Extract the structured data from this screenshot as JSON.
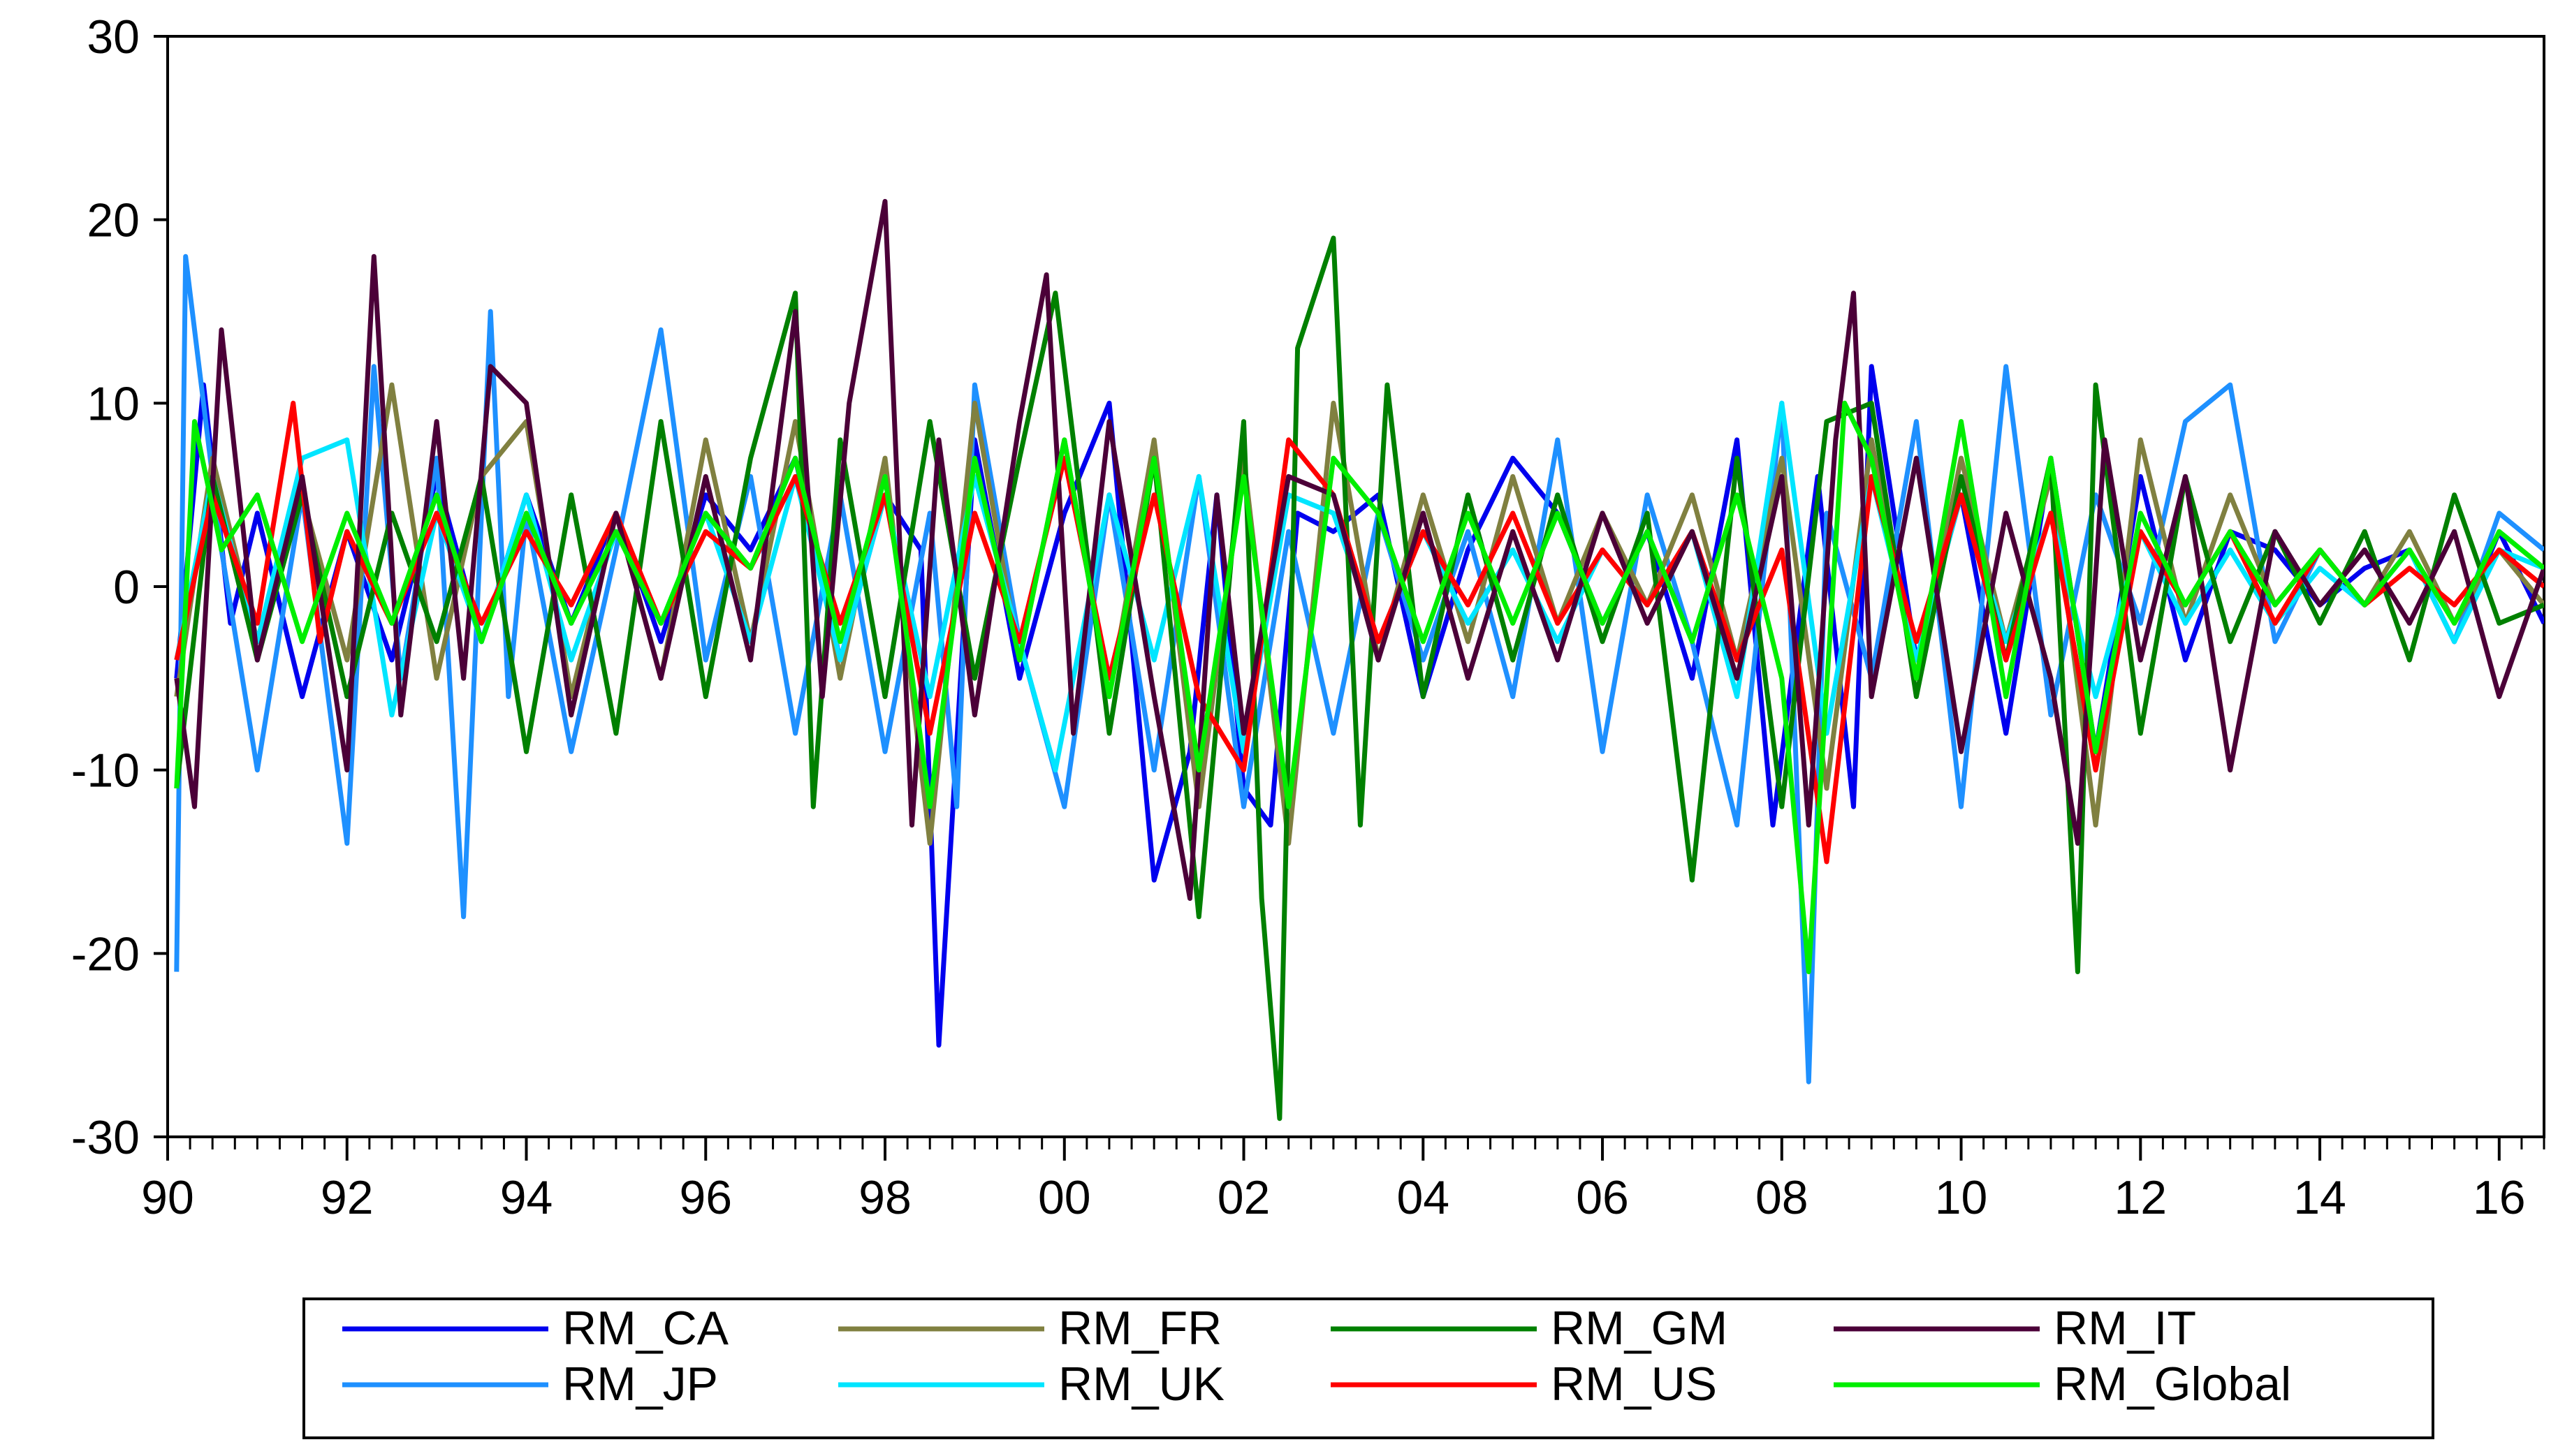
{
  "chart_data": {
    "type": "line",
    "title": "",
    "xlabel": "",
    "ylabel": "",
    "x_range": [
      1990.0,
      2016.5
    ],
    "ylim": [
      -30,
      30
    ],
    "y_ticks": [
      30,
      20,
      10,
      0,
      -10,
      -20,
      -30
    ],
    "x_ticks": [
      {
        "value": 1990,
        "label": "90"
      },
      {
        "value": 1992,
        "label": "92"
      },
      {
        "value": 1994,
        "label": "94"
      },
      {
        "value": 1996,
        "label": "96"
      },
      {
        "value": 1998,
        "label": "98"
      },
      {
        "value": 2000,
        "label": "00"
      },
      {
        "value": 2002,
        "label": "02"
      },
      {
        "value": 2004,
        "label": "04"
      },
      {
        "value": 2006,
        "label": "06"
      },
      {
        "value": 2008,
        "label": "08"
      },
      {
        "value": 2010,
        "label": "10"
      },
      {
        "value": 2012,
        "label": "12"
      },
      {
        "value": 2014,
        "label": "14"
      },
      {
        "value": 2016,
        "label": "16"
      }
    ],
    "grid": false,
    "legend_position": "bottom",
    "legend_columns": 4,
    "series": [
      {
        "name": "RM_CA",
        "color": "#0000ee",
        "x": [
          1990.1,
          1990.4,
          1990.7,
          1991.0,
          1991.5,
          1992.0,
          1992.5,
          1993.0,
          1993.5,
          1994.0,
          1994.5,
          1995.0,
          1995.5,
          1996.0,
          1996.5,
          1997.0,
          1997.5,
          1998.0,
          1998.4,
          1998.6,
          1999.0,
          1999.5,
          2000.0,
          2000.5,
          2001.0,
          2001.4,
          2001.7,
          2002.0,
          2002.3,
          2002.6,
          2003.0,
          2003.5,
          2004.0,
          2004.5,
          2005.0,
          2005.5,
          2006.0,
          2006.5,
          2007.0,
          2007.5,
          2007.9,
          2008.4,
          2008.8,
          2009.0,
          2009.5,
          2010.0,
          2010.5,
          2011.0,
          2011.5,
          2012.0,
          2012.5,
          2013.0,
          2013.5,
          2014.0,
          2014.5,
          2015.0,
          2015.5,
          2016.0,
          2016.5
        ],
        "y": [
          -5,
          11,
          -2,
          4,
          -6,
          3,
          -4,
          6,
          -3,
          5,
          -2,
          4,
          -3,
          5,
          2,
          7,
          -4,
          5,
          2,
          -25,
          8,
          -5,
          4,
          10,
          -16,
          -9,
          5,
          -11,
          -13,
          4,
          3,
          5,
          -6,
          2,
          7,
          4,
          -2,
          3,
          -5,
          8,
          -13,
          6,
          -12,
          12,
          -4,
          5,
          -8,
          7,
          -9,
          6,
          -4,
          3,
          2,
          -1,
          1,
          2,
          -3,
          3,
          -2
        ]
      },
      {
        "name": "RM_JP",
        "color": "#1e90ff",
        "x": [
          1990.1,
          1990.2,
          1990.6,
          1991.0,
          1991.5,
          1992.0,
          1992.3,
          1992.6,
          1993.0,
          1993.3,
          1993.6,
          1993.8,
          1994.0,
          1994.5,
          1995.0,
          1995.5,
          1996.0,
          1996.5,
          1997.0,
          1997.5,
          1998.0,
          1998.5,
          1998.8,
          1999.0,
          1999.5,
          2000.0,
          2000.5,
          2001.0,
          2001.5,
          2002.0,
          2002.5,
          2003.0,
          2003.5,
          2004.0,
          2004.5,
          2005.0,
          2005.5,
          2006.0,
          2006.5,
          2007.0,
          2007.5,
          2008.0,
          2008.3,
          2008.5,
          2009.0,
          2009.5,
          2010.0,
          2010.5,
          2011.0,
          2011.5,
          2012.0,
          2012.5,
          2013.0,
          2013.5,
          2014.0,
          2014.5,
          2015.0,
          2015.5,
          2016.0,
          2016.5
        ],
        "y": [
          -21,
          18,
          2,
          -10,
          5,
          -14,
          12,
          -5,
          7,
          -18,
          15,
          -6,
          4,
          -9,
          2,
          14,
          -4,
          6,
          -8,
          5,
          -9,
          4,
          -12,
          11,
          -3,
          -12,
          5,
          -10,
          6,
          -12,
          3,
          -8,
          4,
          -4,
          3,
          -6,
          8,
          -9,
          5,
          -3,
          -13,
          10,
          -27,
          4,
          -5,
          9,
          -12,
          12,
          -7,
          5,
          -2,
          9,
          11,
          -3,
          2,
          -1,
          2,
          -3,
          4,
          2
        ]
      },
      {
        "name": "RM_FR",
        "color": "#808040",
        "x": [
          1990.1,
          1990.5,
          1991.0,
          1991.5,
          1992.0,
          1992.5,
          1993.0,
          1993.5,
          1994.0,
          1994.5,
          1995.0,
          1995.5,
          1996.0,
          1996.5,
          1997.0,
          1997.5,
          1998.0,
          1998.5,
          1999.0,
          1999.5,
          2000.0,
          2000.5,
          2001.0,
          2001.5,
          2002.0,
          2002.5,
          2003.0,
          2003.5,
          2004.0,
          2004.5,
          2005.0,
          2005.5,
          2006.0,
          2006.5,
          2007.0,
          2007.5,
          2008.0,
          2008.5,
          2009.0,
          2009.5,
          2010.0,
          2010.5,
          2011.0,
          2011.5,
          2012.0,
          2012.5,
          2013.0,
          2013.5,
          2014.0,
          2014.5,
          2015.0,
          2015.5,
          2016.0,
          2016.5
        ],
        "y": [
          -6,
          7,
          -3,
          5,
          -4,
          11,
          -5,
          6,
          9,
          -6,
          4,
          -5,
          8,
          -3,
          9,
          -5,
          7,
          -14,
          10,
          -4,
          8,
          -6,
          8,
          -12,
          7,
          -14,
          10,
          -4,
          5,
          -3,
          6,
          -2,
          4,
          -1,
          5,
          -4,
          7,
          -11,
          8,
          -5,
          7,
          -3,
          6,
          -13,
          8,
          -2,
          5,
          -1,
          2,
          -1,
          3,
          -2,
          2,
          -1
        ]
      },
      {
        "name": "RM_UK",
        "color": "#00e5ff",
        "x": [
          1990.1,
          1990.5,
          1991.0,
          1991.5,
          1992.0,
          1992.5,
          1993.0,
          1993.5,
          1994.0,
          1994.5,
          1995.0,
          1995.5,
          1996.0,
          1996.5,
          1997.0,
          1997.5,
          1998.0,
          1998.5,
          1999.0,
          1999.5,
          1999.9,
          2000.5,
          2001.0,
          2001.5,
          2002.0,
          2002.5,
          2003.0,
          2003.5,
          2004.0,
          2004.5,
          2005.0,
          2005.5,
          2006.0,
          2006.5,
          2007.0,
          2007.5,
          2008.0,
          2008.5,
          2009.0,
          2009.5,
          2010.0,
          2010.5,
          2011.0,
          2011.5,
          2012.0,
          2012.5,
          2013.0,
          2013.5,
          2014.0,
          2014.5,
          2015.0,
          2015.5,
          2016.0,
          2016.5
        ],
        "y": [
          -4,
          6,
          -3,
          7,
          8,
          -7,
          4,
          -3,
          5,
          -4,
          3,
          -2,
          4,
          -3,
          6,
          -4,
          5,
          -6,
          6,
          -3,
          -10,
          5,
          -4,
          6,
          -9,
          5,
          4,
          -3,
          3,
          -2,
          2,
          -3,
          2,
          -1,
          3,
          -6,
          10,
          -8,
          6,
          -4,
          5,
          -3,
          4,
          -6,
          3,
          -2,
          2,
          -2,
          1,
          -1,
          2,
          -3,
          2,
          1
        ]
      },
      {
        "name": "RM_GM",
        "color": "#008000",
        "x": [
          1990.1,
          1990.5,
          1991.0,
          1991.5,
          1992.0,
          1992.5,
          1993.0,
          1993.5,
          1994.0,
          1994.5,
          1995.0,
          1995.5,
          1996.0,
          1996.5,
          1997.0,
          1997.2,
          1997.5,
          1998.0,
          1998.5,
          1999.0,
          1999.5,
          1999.9,
          2000.5,
          2001.0,
          2001.5,
          2002.0,
          2002.2,
          2002.4,
          2002.6,
          2003.0,
          2003.3,
          2003.6,
          2004.0,
          2004.5,
          2005.0,
          2005.5,
          2006.0,
          2006.5,
          2007.0,
          2007.5,
          2008.0,
          2008.5,
          2009.0,
          2009.5,
          2010.0,
          2010.5,
          2011.0,
          2011.3,
          2011.5,
          2012.0,
          2012.5,
          2013.0,
          2013.5,
          2014.0,
          2014.5,
          2015.0,
          2015.5,
          2016.0,
          2016.5
        ],
        "y": [
          -11,
          6,
          -4,
          5,
          -6,
          4,
          -3,
          6,
          -9,
          5,
          -8,
          9,
          -6,
          7,
          16,
          -12,
          8,
          -6,
          9,
          -5,
          7,
          16,
          -8,
          7,
          -18,
          9,
          -17,
          -29,
          13,
          19,
          -13,
          11,
          -6,
          5,
          -4,
          5,
          -3,
          4,
          -16,
          7,
          -12,
          9,
          10,
          -6,
          6,
          -4,
          7,
          -21,
          11,
          -8,
          6,
          -3,
          3,
          -2,
          3,
          -4,
          5,
          -2,
          -1
        ]
      },
      {
        "name": "RM_US",
        "color": "#ff0000",
        "x": [
          1990.1,
          1990.5,
          1991.0,
          1991.4,
          1991.7,
          1992.0,
          1992.5,
          1993.0,
          1993.5,
          1994.0,
          1994.5,
          1995.0,
          1995.5,
          1996.0,
          1996.5,
          1997.0,
          1997.5,
          1998.0,
          1998.5,
          1999.0,
          1999.5,
          2000.0,
          2000.5,
          2001.0,
          2001.5,
          2002.0,
          2002.5,
          2003.0,
          2003.5,
          2004.0,
          2004.5,
          2005.0,
          2005.5,
          2006.0,
          2006.5,
          2007.0,
          2007.5,
          2008.0,
          2008.5,
          2009.0,
          2009.5,
          2010.0,
          2010.5,
          2011.0,
          2011.5,
          2012.0,
          2012.5,
          2013.0,
          2013.5,
          2014.0,
          2014.5,
          2015.0,
          2015.5,
          2016.0,
          2016.5
        ],
        "y": [
          -4,
          5,
          -2,
          10,
          -3,
          3,
          -2,
          4,
          -2,
          3,
          -1,
          4,
          -2,
          3,
          1,
          6,
          -2,
          5,
          -8,
          4,
          -3,
          7,
          -5,
          5,
          -6,
          -10,
          8,
          5,
          -3,
          3,
          -1,
          4,
          -2,
          2,
          -1,
          3,
          -4,
          2,
          -15,
          6,
          -3,
          5,
          -4,
          4,
          -10,
          3,
          -1,
          3,
          -2,
          2,
          -1,
          1,
          -1,
          2,
          0
        ]
      },
      {
        "name": "RM_IT",
        "color": "#4b0038",
        "x": [
          1990.1,
          1990.3,
          1990.6,
          1991.0,
          1991.5,
          1992.0,
          1992.3,
          1992.6,
          1993.0,
          1993.3,
          1993.6,
          1994.0,
          1994.5,
          1995.0,
          1995.5,
          1996.0,
          1996.5,
          1997.0,
          1997.3,
          1997.6,
          1998.0,
          1998.3,
          1998.6,
          1999.0,
          1999.5,
          1999.8,
          2000.1,
          2000.5,
          2001.0,
          2001.4,
          2001.7,
          2002.0,
          2002.5,
          2003.0,
          2003.5,
          2004.0,
          2004.5,
          2005.0,
          2005.5,
          2006.0,
          2006.5,
          2007.0,
          2007.5,
          2008.0,
          2008.3,
          2008.6,
          2008.8,
          2009.0,
          2009.5,
          2010.0,
          2010.5,
          2011.0,
          2011.3,
          2011.6,
          2012.0,
          2012.5,
          2013.0,
          2013.5,
          2014.0,
          2014.5,
          2015.0,
          2015.5,
          2016.0,
          2016.5
        ],
        "y": [
          -5,
          -12,
          14,
          -4,
          6,
          -10,
          18,
          -7,
          9,
          -5,
          12,
          10,
          -7,
          4,
          -5,
          6,
          -4,
          15,
          -6,
          10,
          21,
          -13,
          8,
          -7,
          9,
          17,
          -8,
          9,
          -6,
          -17,
          5,
          -8,
          6,
          5,
          -4,
          4,
          -5,
          3,
          -4,
          4,
          -2,
          3,
          -5,
          6,
          -13,
          8,
          16,
          -6,
          7,
          -9,
          4,
          -5,
          -14,
          8,
          -4,
          6,
          -10,
          3,
          -1,
          2,
          -2,
          3,
          -6,
          1
        ]
      },
      {
        "name": "RM_Global",
        "color": "#00ee00",
        "x": [
          1990.1,
          1990.3,
          1990.6,
          1991.0,
          1991.5,
          1992.0,
          1992.5,
          1993.0,
          1993.5,
          1994.0,
          1994.5,
          1995.0,
          1995.5,
          1996.0,
          1996.5,
          1997.0,
          1997.5,
          1998.0,
          1998.5,
          1999.0,
          1999.5,
          2000.0,
          2000.5,
          2001.0,
          2001.5,
          2002.0,
          2002.5,
          2003.0,
          2003.5,
          2004.0,
          2004.5,
          2005.0,
          2005.5,
          2006.0,
          2006.5,
          2007.0,
          2007.5,
          2008.0,
          2008.3,
          2008.7,
          2009.0,
          2009.5,
          2010.0,
          2010.5,
          2011.0,
          2011.5,
          2012.0,
          2012.5,
          2013.0,
          2013.5,
          2014.0,
          2014.5,
          2015.0,
          2015.5,
          2016.0,
          2016.5
        ],
        "y": [
          -11,
          9,
          2,
          5,
          -3,
          4,
          -2,
          5,
          -3,
          4,
          -2,
          3,
          -2,
          4,
          1,
          7,
          -3,
          6,
          -12,
          7,
          -4,
          8,
          -6,
          7,
          -10,
          6,
          -12,
          7,
          4,
          -3,
          4,
          -2,
          4,
          -2,
          3,
          -3,
          5,
          -5,
          -21,
          10,
          7,
          -5,
          9,
          -6,
          7,
          -9,
          4,
          -1,
          3,
          -1,
          2,
          -1,
          2,
          -2,
          3,
          1
        ]
      }
    ]
  }
}
